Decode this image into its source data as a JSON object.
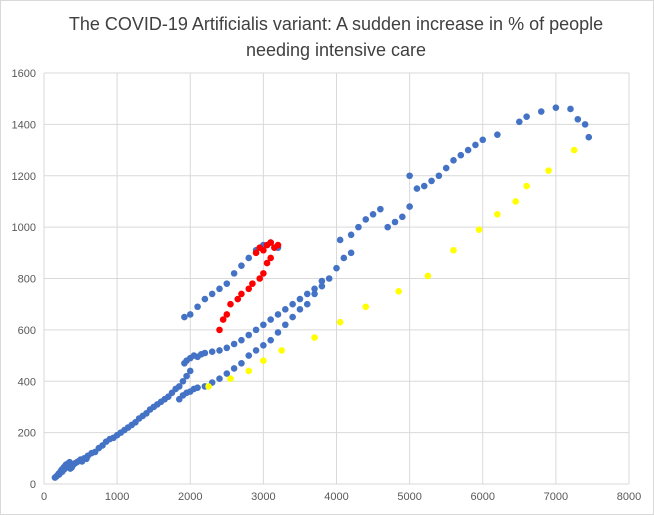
{
  "chart_data": {
    "type": "scatter",
    "title": "The COVID-19 Artificialis variant: A sudden increase in % of people needing intensive care",
    "xlabel": "",
    "ylabel": "",
    "xlim": [
      0,
      8000
    ],
    "ylim": [
      0,
      1600
    ],
    "x_ticks": [
      0,
      1000,
      2000,
      3000,
      4000,
      5000,
      6000,
      7000,
      8000
    ],
    "y_ticks": [
      0,
      200,
      400,
      600,
      800,
      1000,
      1200,
      1400,
      1600
    ],
    "grid": true,
    "legend": "none",
    "colors": {
      "blue": "#4472c4",
      "red": "#ff0000",
      "yellow": "#ffff00"
    },
    "series": [
      {
        "color": "#4472c4",
        "points": [
          [
            150,
            25
          ],
          [
            170,
            30
          ],
          [
            190,
            35
          ],
          [
            200,
            40
          ],
          [
            210,
            38
          ],
          [
            220,
            45
          ],
          [
            230,
            50
          ],
          [
            240,
            55
          ],
          [
            250,
            48
          ],
          [
            260,
            60
          ],
          [
            270,
            65
          ],
          [
            280,
            58
          ],
          [
            290,
            70
          ],
          [
            300,
            75
          ],
          [
            310,
            68
          ],
          [
            320,
            72
          ],
          [
            330,
            80
          ],
          [
            340,
            78
          ],
          [
            350,
            85
          ],
          [
            360,
            60
          ],
          [
            370,
            70
          ],
          [
            380,
            65
          ],
          [
            400,
            75
          ],
          [
            420,
            80
          ],
          [
            450,
            85
          ],
          [
            480,
            90
          ],
          [
            500,
            95
          ],
          [
            520,
            88
          ],
          [
            550,
            100
          ],
          [
            580,
            98
          ],
          [
            600,
            110
          ],
          [
            650,
            120
          ],
          [
            700,
            125
          ],
          [
            750,
            140
          ],
          [
            800,
            150
          ],
          [
            850,
            165
          ],
          [
            900,
            175
          ],
          [
            950,
            180
          ],
          [
            1000,
            190
          ],
          [
            1050,
            200
          ],
          [
            1100,
            210
          ],
          [
            1150,
            220
          ],
          [
            1200,
            230
          ],
          [
            1250,
            240
          ],
          [
            1300,
            255
          ],
          [
            1350,
            265
          ],
          [
            1400,
            275
          ],
          [
            1450,
            290
          ],
          [
            1500,
            300
          ],
          [
            1550,
            310
          ],
          [
            1600,
            320
          ],
          [
            1650,
            330
          ],
          [
            1700,
            340
          ],
          [
            1750,
            355
          ],
          [
            1800,
            370
          ],
          [
            1850,
            380
          ],
          [
            1900,
            400
          ],
          [
            1950,
            420
          ],
          [
            2000,
            440
          ],
          [
            1920,
            470
          ],
          [
            1950,
            480
          ],
          [
            2000,
            490
          ],
          [
            2050,
            500
          ],
          [
            2100,
            495
          ],
          [
            2150,
            505
          ],
          [
            2200,
            510
          ],
          [
            2300,
            515
          ],
          [
            2400,
            520
          ],
          [
            2500,
            530
          ],
          [
            2600,
            545
          ],
          [
            2700,
            560
          ],
          [
            2800,
            580
          ],
          [
            2900,
            600
          ],
          [
            3000,
            620
          ],
          [
            3100,
            640
          ],
          [
            3200,
            660
          ],
          [
            3300,
            680
          ],
          [
            3400,
            700
          ],
          [
            3500,
            720
          ],
          [
            3600,
            740
          ],
          [
            3700,
            760
          ],
          [
            3800,
            790
          ],
          [
            1920,
            650
          ],
          [
            2000,
            660
          ],
          [
            2100,
            690
          ],
          [
            2200,
            720
          ],
          [
            2300,
            740
          ],
          [
            2400,
            760
          ],
          [
            2500,
            780
          ],
          [
            2600,
            820
          ],
          [
            2700,
            850
          ],
          [
            2800,
            880
          ],
          [
            2900,
            910
          ],
          [
            3000,
            930
          ],
          [
            3100,
            940
          ],
          [
            3200,
            920
          ],
          [
            1850,
            330
          ],
          [
            1900,
            345
          ],
          [
            1950,
            355
          ],
          [
            2000,
            360
          ],
          [
            2050,
            370
          ],
          [
            2100,
            375
          ],
          [
            2200,
            380
          ],
          [
            2300,
            395
          ],
          [
            2400,
            410
          ],
          [
            2500,
            430
          ],
          [
            2600,
            450
          ],
          [
            2700,
            470
          ],
          [
            2800,
            500
          ],
          [
            2900,
            520
          ],
          [
            3000,
            540
          ],
          [
            3100,
            560
          ],
          [
            3200,
            590
          ],
          [
            3300,
            620
          ],
          [
            3400,
            650
          ],
          [
            3500,
            680
          ],
          [
            3600,
            700
          ],
          [
            3700,
            740
          ],
          [
            3800,
            770
          ],
          [
            3900,
            800
          ],
          [
            4000,
            840
          ],
          [
            4100,
            880
          ],
          [
            4200,
            900
          ],
          [
            4050,
            950
          ],
          [
            4200,
            970
          ],
          [
            4300,
            1000
          ],
          [
            4400,
            1030
          ],
          [
            4500,
            1050
          ],
          [
            4600,
            1070
          ],
          [
            4700,
            1000
          ],
          [
            4800,
            1020
          ],
          [
            4900,
            1040
          ],
          [
            5000,
            1080
          ],
          [
            5000,
            1200
          ],
          [
            5100,
            1150
          ],
          [
            5200,
            1160
          ],
          [
            5300,
            1180
          ],
          [
            5400,
            1200
          ],
          [
            5500,
            1230
          ],
          [
            5600,
            1260
          ],
          [
            5700,
            1280
          ],
          [
            5800,
            1300
          ],
          [
            5900,
            1320
          ],
          [
            6000,
            1340
          ],
          [
            6200,
            1360
          ],
          [
            6500,
            1410
          ],
          [
            6600,
            1430
          ],
          [
            6800,
            1450
          ],
          [
            7000,
            1465
          ],
          [
            7200,
            1460
          ],
          [
            7300,
            1420
          ],
          [
            7400,
            1400
          ],
          [
            7450,
            1350
          ]
        ]
      },
      {
        "color": "#ff0000",
        "points": [
          [
            2400,
            600
          ],
          [
            2450,
            640
          ],
          [
            2500,
            660
          ],
          [
            2550,
            700
          ],
          [
            2650,
            720
          ],
          [
            2700,
            740
          ],
          [
            2800,
            760
          ],
          [
            2850,
            780
          ],
          [
            2950,
            800
          ],
          [
            3000,
            820
          ],
          [
            3050,
            860
          ],
          [
            3100,
            880
          ],
          [
            2900,
            900
          ],
          [
            2950,
            920
          ],
          [
            3000,
            910
          ],
          [
            3050,
            930
          ],
          [
            3100,
            940
          ],
          [
            3150,
            920
          ],
          [
            3200,
            930
          ]
        ]
      },
      {
        "color": "#ffff00",
        "points": [
          [
            2250,
            380
          ],
          [
            2550,
            410
          ],
          [
            2800,
            440
          ],
          [
            3000,
            480
          ],
          [
            3250,
            520
          ],
          [
            3700,
            570
          ],
          [
            4050,
            630
          ],
          [
            4400,
            690
          ],
          [
            4850,
            750
          ],
          [
            5250,
            810
          ],
          [
            5600,
            910
          ],
          [
            5950,
            990
          ],
          [
            6200,
            1050
          ],
          [
            6450,
            1100
          ],
          [
            6600,
            1160
          ],
          [
            6900,
            1220
          ],
          [
            7250,
            1300
          ]
        ]
      }
    ]
  }
}
